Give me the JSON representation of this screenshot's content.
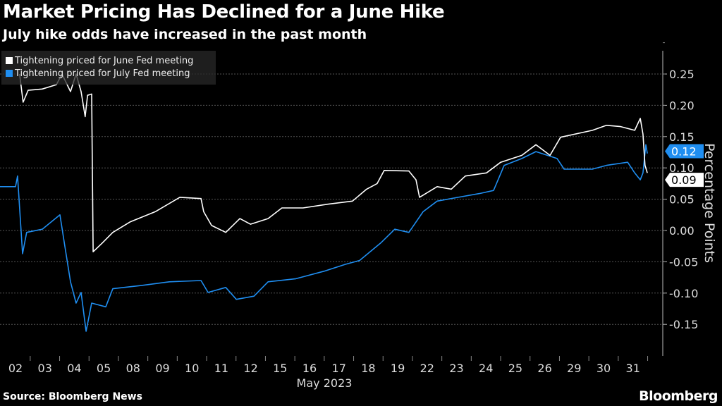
{
  "title": "Market Pricing Has Declined for a June Hike",
  "subtitle": "July hike odds have increased in the past month",
  "source": "Source: Bloomberg News",
  "logo": "Bloomberg",
  "chart_data": {
    "type": "line",
    "title": "Market Pricing Has Declined for a June Hike",
    "xlabel": "May 2023",
    "ylabel": "Percentage Points",
    "x_tick_labels": [
      "02",
      "03",
      "04",
      "05",
      "08",
      "09",
      "10",
      "11",
      "12",
      "15",
      "16",
      "17",
      "18",
      "19",
      "22",
      "23",
      "24",
      "25",
      "26",
      "29",
      "30",
      "31"
    ],
    "y_ticks": [
      "0.25",
      "0.20",
      "0.15",
      "0.10",
      "0.05",
      "0.00",
      "-0.05",
      "-0.10",
      "-0.15"
    ],
    "y_tick_values": [
      0.25,
      0.2,
      0.15,
      0.1,
      0.05,
      0,
      -0.05,
      -0.1,
      -0.15
    ],
    "ylim": [
      -0.2,
      0.29
    ],
    "xlim": [
      -0.53,
      21.8
    ],
    "grid": true,
    "legend_position": "top-left",
    "colors": {
      "june": "#ffffff",
      "july": "#1f8ef1"
    },
    "end_labels": [
      {
        "series": "july",
        "text": "0.12",
        "value": 0.12
      },
      {
        "series": "june",
        "text": "0.09",
        "value": 0.09
      }
    ],
    "series": [
      {
        "name": "Tightening priced for June Fed meeting",
        "key": "june",
        "x": [
          0.14,
          0.26,
          0.43,
          0.91,
          1.39,
          1.58,
          1.87,
          2.06,
          2.23,
          2.37,
          2.45,
          2.59,
          2.64,
          2.95,
          3.31,
          3.91,
          4.75,
          5.59,
          6.31,
          6.4,
          6.67,
          7.15,
          7.63,
          7.99,
          8.59,
          9.06,
          9.78,
          10.62,
          11.46,
          11.94,
          12.3,
          12.54,
          13.38,
          13.62,
          13.74,
          14.34,
          14.82,
          15.3,
          16.02,
          16.5,
          17.22,
          17.7,
          18.18,
          18.54,
          19.62,
          20.1,
          20.58,
          21.06,
          21.25,
          21.34,
          21.41,
          21.49
        ],
        "y": [
          0.25,
          0.205,
          0.224,
          0.226,
          0.233,
          0.25,
          0.222,
          0.25,
          0.222,
          0.182,
          0.216,
          0.218,
          -0.034,
          -0.02,
          -0.003,
          0.014,
          0.03,
          0.053,
          0.051,
          0.03,
          0.008,
          -0.003,
          0.019,
          0.01,
          0.019,
          0.036,
          0.036,
          0.042,
          0.047,
          0.066,
          0.075,
          0.096,
          0.095,
          0.081,
          0.053,
          0.07,
          0.066,
          0.087,
          0.092,
          0.109,
          0.12,
          0.137,
          0.12,
          0.149,
          0.16,
          0.168,
          0.166,
          0.16,
          0.179,
          0.154,
          0.104,
          0.092
        ]
      },
      {
        "name": "Tightening priced for July Fed meeting",
        "key": "july",
        "x": [
          -0.53,
          0,
          0.07,
          0.24,
          0.38,
          0.91,
          1.51,
          1.68,
          1.87,
          2.06,
          2.23,
          2.4,
          2.59,
          3.07,
          3.31,
          4.27,
          5.23,
          6.31,
          6.55,
          7.15,
          7.51,
          8.11,
          8.59,
          9.54,
          10.5,
          11.22,
          11.7,
          12.42,
          12.9,
          13.38,
          13.86,
          14.34,
          15.06,
          15.78,
          16.26,
          16.62,
          17.22,
          17.7,
          18.42,
          18.66,
          19.62,
          20.1,
          20.82,
          21.06,
          21.25,
          21.34,
          21.44,
          21.49
        ],
        "y": [
          0.07,
          0.07,
          0.087,
          -0.037,
          -0.003,
          0.002,
          0.025,
          -0.026,
          -0.082,
          -0.116,
          -0.099,
          -0.161,
          -0.116,
          -0.122,
          -0.093,
          -0.088,
          -0.082,
          -0.08,
          -0.099,
          -0.091,
          -0.11,
          -0.105,
          -0.082,
          -0.077,
          -0.065,
          -0.054,
          -0.048,
          -0.02,
          0.002,
          -0.003,
          0.03,
          0.047,
          0.053,
          0.059,
          0.064,
          0.104,
          0.115,
          0.126,
          0.115,
          0.098,
          0.098,
          0.104,
          0.109,
          0.092,
          0.081,
          0.092,
          0.137,
          0.123
        ]
      }
    ]
  }
}
